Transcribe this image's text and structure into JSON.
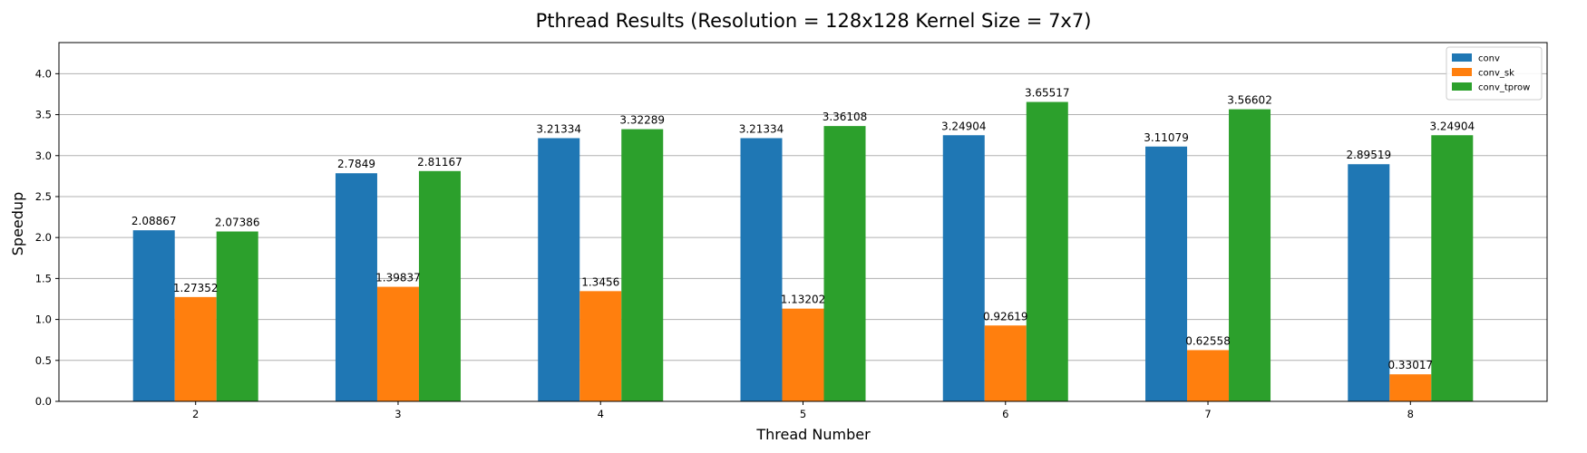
{
  "chart_data": {
    "type": "bar",
    "title": "Pthread Results (Resolution = 128x128 Kernel Size = 7x7)",
    "xlabel": "Thread Number",
    "ylabel": "Speedup",
    "categories": [
      "2",
      "3",
      "4",
      "5",
      "6",
      "7",
      "8"
    ],
    "series": [
      {
        "name": "conv",
        "color": "#1f77b4",
        "values": [
          2.08867,
          2.7849,
          3.21334,
          3.21334,
          3.24904,
          3.11079,
          2.89519
        ],
        "labels": [
          "2.08867",
          "2.7849",
          "3.21334",
          "3.21334",
          "3.24904",
          "3.11079",
          "2.89519"
        ]
      },
      {
        "name": "conv_sk",
        "color": "#ff7f0e",
        "values": [
          1.27352,
          1.39837,
          1.3456,
          1.13202,
          0.92619,
          0.62558,
          0.33017
        ],
        "labels": [
          "1.27352",
          "1.39837",
          "1.3456",
          "1.13202",
          "0.92619",
          "0.62558",
          "0.33017"
        ]
      },
      {
        "name": "conv_tprow",
        "color": "#2ca02c",
        "values": [
          2.07386,
          2.81167,
          3.32289,
          3.36108,
          3.65517,
          3.56602,
          3.24904
        ],
        "labels": [
          "2.07386",
          "2.81167",
          "3.32289",
          "3.36108",
          "3.65517",
          "3.56602",
          "3.24904"
        ]
      }
    ],
    "ylim": [
      0,
      4.38
    ],
    "yticks": [
      "0.0",
      "0.5",
      "1.0",
      "1.5",
      "2.0",
      "2.5",
      "3.0",
      "3.5",
      "4.0"
    ],
    "grid": "horizontal",
    "legend": "top-right"
  }
}
